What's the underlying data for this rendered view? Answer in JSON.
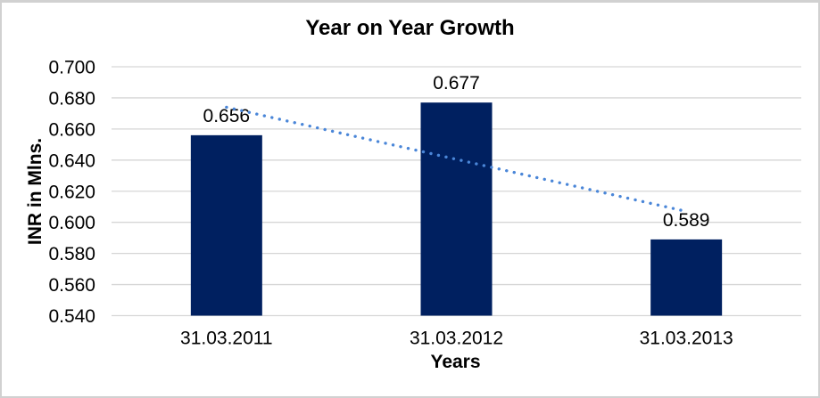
{
  "chart_data": {
    "type": "bar",
    "title": "Year on Year Growth",
    "xlabel": "Years",
    "ylabel": "INR in Mlns.",
    "categories": [
      "31.03.2011",
      "31.03.2012",
      "31.03.2013"
    ],
    "values": [
      0.656,
      0.677,
      0.589
    ],
    "data_labels": [
      "0.656",
      "0.677",
      "0.589"
    ],
    "ylim": [
      0.54,
      0.7
    ],
    "ytick_step": 0.02,
    "ytick_decimals": 3,
    "yticks": [
      "0.540",
      "0.560",
      "0.580",
      "0.600",
      "0.620",
      "0.640",
      "0.660",
      "0.680",
      "0.700"
    ],
    "grid": true,
    "legend": false,
    "colors": {
      "bar": "#002060",
      "gridline": "#d6d6d6",
      "text": "#000000",
      "trendline": "#4a86d8",
      "frame_border": "#d1d1d1",
      "background": "#ffffff"
    },
    "trendline": {
      "type": "linear",
      "style": "dotted",
      "start_value": 0.674,
      "end_value": 0.607
    }
  }
}
